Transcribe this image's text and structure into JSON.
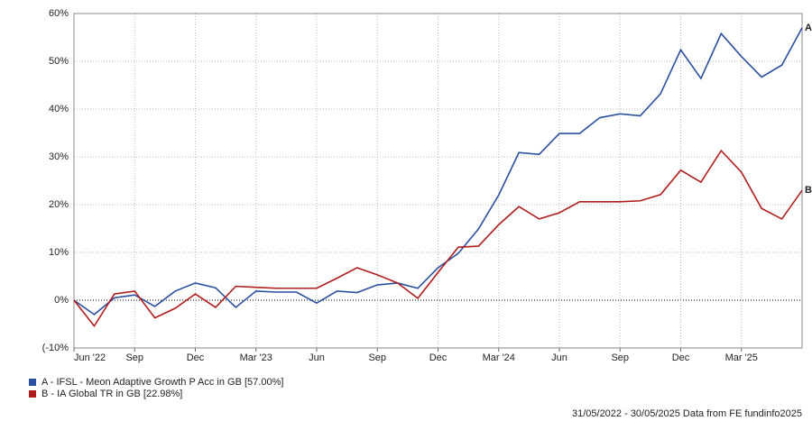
{
  "chart_data": {
    "type": "line",
    "categories": [
      "Jun '22",
      null,
      null,
      "Sep",
      null,
      null,
      "Dec",
      null,
      null,
      "Mar '23",
      null,
      null,
      "Jun",
      null,
      null,
      "Sep",
      null,
      null,
      "Dec",
      null,
      null,
      "Mar '24",
      null,
      null,
      "Jun",
      null,
      null,
      "Sep",
      null,
      null,
      "Dec",
      null,
      null,
      "Mar '25",
      null,
      null,
      null
    ],
    "ylim": [
      -10,
      60
    ],
    "yticks": [
      {
        "value": -10,
        "label": "(-10%"
      },
      {
        "value": 0,
        "label": "0%"
      },
      {
        "value": 10,
        "label": "10%"
      },
      {
        "value": 20,
        "label": "20%"
      },
      {
        "value": 30,
        "label": "30%"
      },
      {
        "value": 40,
        "label": "40%"
      },
      {
        "value": 50,
        "label": "50%"
      },
      {
        "value": 60,
        "label": "60%"
      }
    ],
    "grid": true,
    "series": [
      {
        "name": "A - IFSL - Meon Adaptive Growth P Acc in GB [57.00%]",
        "end_label": "A",
        "color": "#2a4f9e",
        "values": [
          0,
          -3,
          0.5,
          1.1,
          -1.3,
          1.9,
          3.6,
          2.6,
          -1.5,
          1.9,
          1.7,
          1.7,
          -0.6,
          1.9,
          1.6,
          3.2,
          3.6,
          2.5,
          6.8,
          9.8,
          14.9,
          22,
          30.9,
          30.5,
          34.9,
          34.9,
          38.2,
          39,
          38.6,
          43.2,
          52.4,
          46.4,
          55.8,
          51,
          46.7,
          49.2,
          57
        ]
      },
      {
        "name": "B - IA Global TR in GB [22.98%]",
        "end_label": "B",
        "color": "#b01c1c",
        "values": [
          0,
          -5.4,
          1.3,
          1.9,
          -3.7,
          -1.7,
          1.3,
          -1.5,
          2.9,
          2.7,
          2.5,
          2.5,
          2.5,
          4.6,
          6.8,
          5.3,
          3.6,
          0.4,
          5.8,
          11.1,
          11.3,
          15.8,
          19.6,
          17,
          18.3,
          20.6,
          20.6,
          20.6,
          20.8,
          22.1,
          27.2,
          24.7,
          31.3,
          26.8,
          19.2,
          17,
          22.98
        ]
      }
    ],
    "footer": "31/05/2022 - 30/05/2025 Data from FE fundinfo2025"
  }
}
